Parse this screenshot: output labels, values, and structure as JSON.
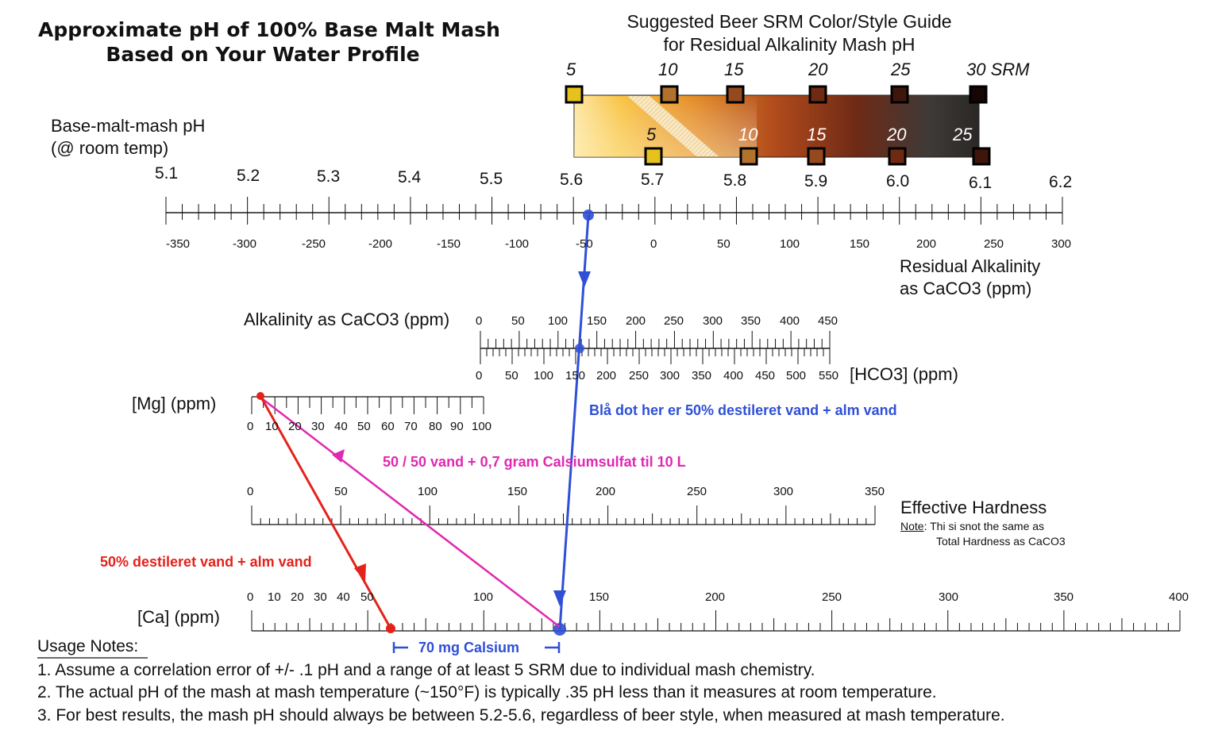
{
  "title": {
    "line1": "Approximate pH of 100% Base Malt Mash",
    "line2": "Based on Your Water Profile"
  },
  "srm_guide": {
    "title_line1": "Suggested Beer SRM Color/Style Guide",
    "title_line2": "for Residual Alkalinity Mash pH",
    "top_labels": [
      "5",
      "10",
      "15",
      "20",
      "25",
      "30 SRM"
    ],
    "top_colors": [
      "#e6c21c",
      "#b3722c",
      "#94491f",
      "#6e2a12",
      "#3e160c",
      "#160605"
    ],
    "bottom_labels": [
      "5",
      "10",
      "15",
      "20",
      "25"
    ],
    "bottom_colors": [
      "#e6c21c",
      "#b3722c",
      "#94491f",
      "#6e2a12",
      "#3e160c"
    ]
  },
  "ph_scale": {
    "caption_line1": "Base-malt-mash pH",
    "caption_line2": "(@ room temp)",
    "labels": [
      "5.1",
      "5.2",
      "5.3",
      "5.4",
      "5.5",
      "5.6",
      "5.7",
      "5.8",
      "5.9",
      "6.0",
      "6.1",
      "6.2"
    ]
  },
  "ra_scale": {
    "labels": [
      "-350",
      "-300",
      "-250",
      "-200",
      "-150",
      "-100",
      "-50",
      "0",
      "50",
      "100",
      "150",
      "200",
      "250",
      "300"
    ],
    "caption_line1": "Residual Alkalinity",
    "caption_line2": "as CaCO3 (ppm)"
  },
  "alkalinity_scale": {
    "caption": "Alkalinity as CaCO3 (ppm)",
    "labels": [
      "0",
      "50",
      "100",
      "150",
      "200",
      "250",
      "300",
      "350",
      "400",
      "450"
    ]
  },
  "hco3_scale": {
    "labels": [
      "0",
      "50",
      "100",
      "150",
      "200",
      "250",
      "300",
      "350",
      "400",
      "450",
      "500",
      "550"
    ],
    "caption": "[HCO3] (ppm)"
  },
  "mg_scale": {
    "caption": "[Mg] (ppm)",
    "labels": [
      "0",
      "10",
      "20",
      "30",
      "40",
      "50",
      "60",
      "70",
      "80",
      "90",
      "100"
    ]
  },
  "hardness_scale": {
    "labels": [
      "0",
      "50",
      "100",
      "150",
      "200",
      "250",
      "300",
      "350"
    ],
    "caption": "Effective Hardness",
    "note_label": "Note",
    "note_text": ": Thi si snot the same as",
    "note_line2": "Total Hardness as CaCO3"
  },
  "ca_scale": {
    "caption": "[Ca] (ppm)",
    "labels": [
      "0",
      "10",
      "20",
      "30",
      "40",
      "50",
      "100",
      "150",
      "200",
      "250",
      "300",
      "350",
      "400"
    ]
  },
  "annotations": {
    "blue_note": "Blå dot her er 50% destileret vand + alm vand",
    "magenta_note": "50 / 50 vand + 0,7 gram Calsiumsulfat til 10 L",
    "red_note": "50% destileret vand + alm vand",
    "calcium_diff": "70 mg Calsium",
    "colors": {
      "blue": "#2f4fd6",
      "magenta": "#e028b0",
      "red": "#e4221c"
    }
  },
  "usage_notes": {
    "heading": "Usage Notes:",
    "items": [
      "1. Assume a correlation error of +/- .1 pH and a range of at least 5 SRM due to individual mash chemistry.",
      "2. The actual pH of the mash at mash temperature (~150°F) is typically .35 pH less than it measures at room temperature.",
      "3. For best results, the mash pH should always be between 5.2-5.6, regardless of beer style, when measured at mash temperature."
    ]
  }
}
